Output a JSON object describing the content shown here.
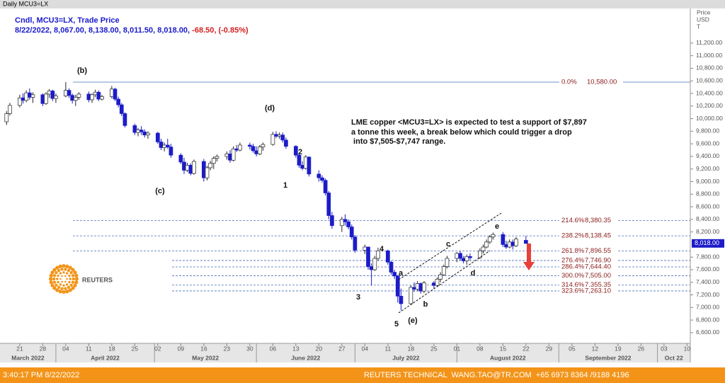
{
  "chart_data": {
    "type": "candlestick",
    "title": "Daily MCU3=LX",
    "header": {
      "title": "Cndl, MCU3=LX, Trade Price",
      "values": "8/22/2022, 8,067.00, 8,138.00, 8,011.50, 8,018.00,",
      "change": "-68.50, (-0.85%)"
    },
    "y_label": [
      "Price",
      "USD",
      "T"
    ],
    "up_color": "#ffffff",
    "down_color": "#1c1cc8",
    "outline_color": "#222222",
    "level_color": "#4a6fb5",
    "x": [
      "2022-03-17",
      "2022-03-18",
      "2022-03-21",
      "2022-03-22",
      "2022-03-23",
      "2022-03-24",
      "2022-03-25",
      "2022-03-28",
      "2022-03-29",
      "2022-03-30",
      "2022-03-31",
      "2022-04-01",
      "2022-04-04",
      "2022-04-05",
      "2022-04-06",
      "2022-04-07",
      "2022-04-08",
      "2022-04-11",
      "2022-04-12",
      "2022-04-13",
      "2022-04-14",
      "2022-04-15",
      "2022-04-18",
      "2022-04-19",
      "2022-04-20",
      "2022-04-21",
      "2022-04-22",
      "2022-04-25",
      "2022-04-26",
      "2022-04-27",
      "2022-04-28",
      "2022-04-29",
      "2022-05-02",
      "2022-05-03",
      "2022-05-04",
      "2022-05-05",
      "2022-05-06",
      "2022-05-09",
      "2022-05-10",
      "2022-05-11",
      "2022-05-12",
      "2022-05-13",
      "2022-05-16",
      "2022-05-17",
      "2022-05-18",
      "2022-05-19",
      "2022-05-20",
      "2022-05-23",
      "2022-05-24",
      "2022-05-25",
      "2022-05-26",
      "2022-05-27",
      "2022-05-30",
      "2022-05-31",
      "2022-06-01",
      "2022-06-02",
      "2022-06-03",
      "2022-06-06",
      "2022-06-07",
      "2022-06-08",
      "2022-06-09",
      "2022-06-10",
      "2022-06-13",
      "2022-06-14",
      "2022-06-15",
      "2022-06-16",
      "2022-06-17",
      "2022-06-20",
      "2022-06-21",
      "2022-06-22",
      "2022-06-23",
      "2022-06-24",
      "2022-06-27",
      "2022-06-28",
      "2022-06-29",
      "2022-06-30",
      "2022-07-01",
      "2022-07-04",
      "2022-07-05",
      "2022-07-06",
      "2022-07-07",
      "2022-07-08",
      "2022-07-11",
      "2022-07-12",
      "2022-07-13",
      "2022-07-14",
      "2022-07-15",
      "2022-07-18",
      "2022-07-19",
      "2022-07-20",
      "2022-07-21",
      "2022-07-22",
      "2022-07-25",
      "2022-07-26",
      "2022-07-27",
      "2022-07-28",
      "2022-07-29",
      "2022-08-01",
      "2022-08-02",
      "2022-08-03",
      "2022-08-04",
      "2022-08-05",
      "2022-08-08",
      "2022-08-09",
      "2022-08-10",
      "2022-08-11",
      "2022-08-12",
      "2022-08-15",
      "2022-08-16",
      "2022-08-17",
      "2022-08-18",
      "2022-08-19",
      "2022-08-22"
    ],
    "open": [
      9950,
      10080,
      10210,
      10330,
      10290,
      10410,
      10340,
      10380,
      10240,
      10390,
      10440,
      10320,
      10360,
      10450,
      10370,
      10290,
      10340,
      10390,
      10300,
      10380,
      10420,
      10310,
      10350,
      10470,
      10310,
      10220,
      10080,
      9890,
      9780,
      9820,
      9790,
      9740,
      9770,
      9630,
      9540,
      9580,
      9550,
      9420,
      9310,
      9180,
      9260,
      9130,
      9320,
      9060,
      9220,
      9290,
      9370,
      9400,
      9440,
      9340,
      9520,
      9500,
      9580,
      9560,
      9490,
      9440,
      9550,
      9590,
      9750,
      9720,
      9740,
      9660,
      9560,
      9420,
      9260,
      9210,
      9390,
      9120,
      9060,
      9020,
      8820,
      8460,
      8300,
      8400,
      8360,
      8280,
      8120,
      7910,
      7960,
      7650,
      7600,
      7780,
      7900,
      7720,
      7560,
      7500,
      7180,
      7060,
      7320,
      7290,
      7380,
      7260,
      7390,
      7350,
      7450,
      7520,
      7650,
      7780,
      7860,
      7780,
      7740,
      7810,
      7790,
      7900,
      7960,
      8040,
      8120,
      8160,
      8000,
      7960,
      8040,
      7980,
      8067
    ],
    "high": [
      10120,
      10250,
      10380,
      10400,
      10450,
      10480,
      10420,
      10400,
      10420,
      10470,
      10460,
      10400,
      10580,
      10480,
      10400,
      10380,
      10420,
      10430,
      10400,
      10460,
      10450,
      10380,
      10520,
      10490,
      10350,
      10250,
      10100,
      9920,
      9850,
      9880,
      9830,
      9800,
      9790,
      9680,
      9620,
      9680,
      9600,
      9450,
      9380,
      9300,
      9290,
      9350,
      9360,
      9250,
      9330,
      9400,
      9430,
      9480,
      9500,
      9560,
      9580,
      9620,
      9620,
      9600,
      9560,
      9580,
      9620,
      9790,
      9800,
      9780,
      9780,
      9700,
      9580,
      9450,
      9320,
      9420,
      9400,
      9180,
      9100,
      9050,
      8850,
      8520,
      8440,
      8480,
      8400,
      8320,
      8150,
      8000,
      7970,
      7700,
      7820,
      7950,
      7920,
      7740,
      7600,
      7520,
      7300,
      7350,
      7400,
      7420,
      7400,
      7420,
      7420,
      7480,
      7560,
      7680,
      7820,
      7880,
      7900,
      7820,
      7840,
      7860,
      7940,
      8000,
      8080,
      8150,
      8190,
      8200,
      8060,
      8080,
      8080,
      8120,
      8138
    ],
    "low": [
      9900,
      10050,
      10180,
      10240,
      10260,
      10300,
      10250,
      10200,
      10220,
      10330,
      10280,
      10250,
      10340,
      10330,
      10240,
      10200,
      10300,
      10260,
      10250,
      10340,
      10280,
      10290,
      10320,
      10280,
      10180,
      10040,
      9860,
      9740,
      9720,
      9740,
      9700,
      9680,
      9600,
      9500,
      9480,
      9520,
      9380,
      9280,
      9120,
      9150,
      9100,
      9110,
      9000,
      9020,
      9180,
      9200,
      9320,
      9350,
      9300,
      9320,
      9470,
      9480,
      9510,
      9460,
      9400,
      9420,
      9490,
      9570,
      9690,
      9680,
      9620,
      9520,
      9380,
      9220,
      9180,
      9190,
      9080,
      9000,
      8980,
      8780,
      8400,
      8250,
      8200,
      8300,
      8240,
      8080,
      7870,
      7850,
      7600,
      7350,
      7580,
      7740,
      7680,
      7520,
      7450,
      7080,
      6955,
      7040,
      7250,
      7260,
      7220,
      7230,
      7300,
      7330,
      7400,
      7500,
      7620,
      7720,
      7740,
      7700,
      7680,
      7750,
      7770,
      7860,
      7940,
      8010,
      8080,
      7960,
      7930,
      7940,
      7920,
      7960,
      8011.5
    ],
    "close": [
      10080,
      10210,
      10330,
      10290,
      10410,
      10340,
      10380,
      10240,
      10390,
      10440,
      10320,
      10360,
      10450,
      10370,
      10290,
      10340,
      10390,
      10300,
      10380,
      10420,
      10310,
      10350,
      10470,
      10310,
      10220,
      10080,
      9890,
      9780,
      9820,
      9790,
      9740,
      9770,
      9630,
      9540,
      9580,
      9550,
      9420,
      9310,
      9180,
      9260,
      9130,
      9320,
      9060,
      9220,
      9290,
      9370,
      9400,
      9440,
      9340,
      9520,
      9500,
      9580,
      9560,
      9490,
      9440,
      9550,
      9590,
      9750,
      9720,
      9740,
      9660,
      9560,
      9420,
      9260,
      9210,
      9390,
      9120,
      9060,
      9020,
      8820,
      8460,
      8300,
      8400,
      8360,
      8280,
      8120,
      7910,
      7960,
      7650,
      7600,
      7780,
      7900,
      7720,
      7560,
      7500,
      7180,
      7060,
      7320,
      7290,
      7380,
      7260,
      7390,
      7350,
      7450,
      7520,
      7650,
      7780,
      7860,
      7780,
      7740,
      7810,
      7790,
      7900,
      7960,
      8040,
      8120,
      8160,
      8000,
      7960,
      8040,
      7980,
      8086.5,
      8018
    ],
    "last_price": {
      "value": 8018,
      "label": "8,018.00"
    },
    "xlim": [
      "2022-03-15",
      "2022-10-11"
    ],
    "xticks": [
      {
        "value": "2022-03-21",
        "label": "21"
      },
      {
        "value": "2022-03-28",
        "label": "28"
      },
      {
        "value": "2022-04-04",
        "label": "04"
      },
      {
        "value": "2022-04-11",
        "label": "11"
      },
      {
        "value": "2022-04-18",
        "label": "18"
      },
      {
        "value": "2022-04-25",
        "label": "25"
      },
      {
        "value": "2022-05-02",
        "label": "02"
      },
      {
        "value": "2022-05-09",
        "label": "09"
      },
      {
        "value": "2022-05-16",
        "label": "16"
      },
      {
        "value": "2022-05-23",
        "label": "23"
      },
      {
        "value": "2022-05-30",
        "label": "30"
      },
      {
        "value": "2022-06-06",
        "label": "06"
      },
      {
        "value": "2022-06-13",
        "label": "13"
      },
      {
        "value": "2022-06-20",
        "label": "20"
      },
      {
        "value": "2022-06-27",
        "label": "27"
      },
      {
        "value": "2022-07-04",
        "label": "04"
      },
      {
        "value": "2022-07-11",
        "label": "11"
      },
      {
        "value": "2022-07-18",
        "label": "18"
      },
      {
        "value": "2022-07-25",
        "label": "25"
      },
      {
        "value": "2022-08-01",
        "label": "01"
      },
      {
        "value": "2022-08-08",
        "label": "08"
      },
      {
        "value": "2022-08-15",
        "label": "15"
      },
      {
        "value": "2022-08-22",
        "label": "22"
      },
      {
        "value": "2022-08-29",
        "label": "29"
      },
      {
        "value": "2022-09-05",
        "label": "05"
      },
      {
        "value": "2022-09-12",
        "label": "12"
      },
      {
        "value": "2022-09-19",
        "label": "19"
      },
      {
        "value": "2022-09-26",
        "label": "26"
      },
      {
        "value": "2022-10-03",
        "label": "03"
      },
      {
        "value": "2022-10-10",
        "label": "10"
      }
    ],
    "months": [
      {
        "value": "2022-03",
        "label": "March 2022"
      },
      {
        "value": "2022-04",
        "label": "April 2022"
      },
      {
        "value": "2022-05",
        "label": "May 2022"
      },
      {
        "value": "2022-06",
        "label": "June 2022"
      },
      {
        "value": "2022-07",
        "label": "July 2022"
      },
      {
        "value": "2022-08",
        "label": "August 2022"
      },
      {
        "value": "2022-09",
        "label": "September 2022"
      },
      {
        "value": "2022-10",
        "label": "Oct 22"
      }
    ],
    "ylim": [
      6430,
      11750
    ],
    "yticks": [
      {
        "value": 11200,
        "label": "11,200.00"
      },
      {
        "value": 11000,
        "label": "11,000.00"
      },
      {
        "value": 10800,
        "label": "10,800.00"
      },
      {
        "value": 10600,
        "label": "10,600.00"
      },
      {
        "value": 10400,
        "label": "10,400.00"
      },
      {
        "value": 10200,
        "label": "10,200.00"
      },
      {
        "value": 10000,
        "label": "10,000.00"
      },
      {
        "value": 9800,
        "label": "9,800.00"
      },
      {
        "value": 9600,
        "label": "9,600.00"
      },
      {
        "value": 9400,
        "label": "9,400.00"
      },
      {
        "value": 9200,
        "label": "9,200.00"
      },
      {
        "value": 9000,
        "label": "9,000.00"
      },
      {
        "value": 8800,
        "label": "8,800.00"
      },
      {
        "value": 8600,
        "label": "8,600.00"
      },
      {
        "value": 8400,
        "label": "8,400.00"
      },
      {
        "value": 8200,
        "label": "8,200.00"
      },
      {
        "value": 7800,
        "label": "7,800.00"
      },
      {
        "value": 7600,
        "label": "7,600.00"
      },
      {
        "value": 7400,
        "label": "7,400.00"
      },
      {
        "value": 7200,
        "label": "7,200.00"
      },
      {
        "value": 7000,
        "label": "7,000.00"
      },
      {
        "value": 6800,
        "label": "6,800.00"
      },
      {
        "value": 6600,
        "label": "6,600.00"
      }
    ],
    "levels": [
      {
        "value": 10580,
        "ratio": "0.0%",
        "label": "10,580.00"
      },
      {
        "value": 8380.35,
        "ratio": "214.6%",
        "label": "8,380.35"
      },
      {
        "value": 8138.45,
        "ratio": "238.2%",
        "label": "8,138.45"
      },
      {
        "value": 7896.55,
        "ratio": "261.8%",
        "label": "7,896.55"
      },
      {
        "value": 7746.9,
        "ratio": "276.4%",
        "label": "7,746.90"
      },
      {
        "value": 7644.4,
        "ratio": "286.4%",
        "label": "7,644.40"
      },
      {
        "value": 7505,
        "ratio": "300.0%",
        "label": "7,505.00"
      },
      {
        "value": 7355.35,
        "ratio": "314.6%",
        "label": "7,355.35"
      },
      {
        "value": 7263.1,
        "ratio": "323.6%",
        "label": "7,263.10"
      }
    ],
    "annotation": [
      "LME copper <MCU3=LX> is expected to test a support of $7,897",
      "a tonne this week, a break below which could trigger a drop",
      " into $7,505-$7,747 range."
    ],
    "wave_labels": [
      "(b)",
      "(c)",
      "(d)",
      "1",
      "2",
      "3",
      "4",
      "5",
      "(e)",
      "a",
      "b",
      "c",
      "d",
      "e"
    ],
    "logo": "REUTERS",
    "footer": {
      "time": "3:40:17 PM 8/22/2022",
      "contact": "REUTERS TECHNICAL  WANG.TAO@TR.COM  +65 6973 8364 /9188 4196"
    }
  }
}
